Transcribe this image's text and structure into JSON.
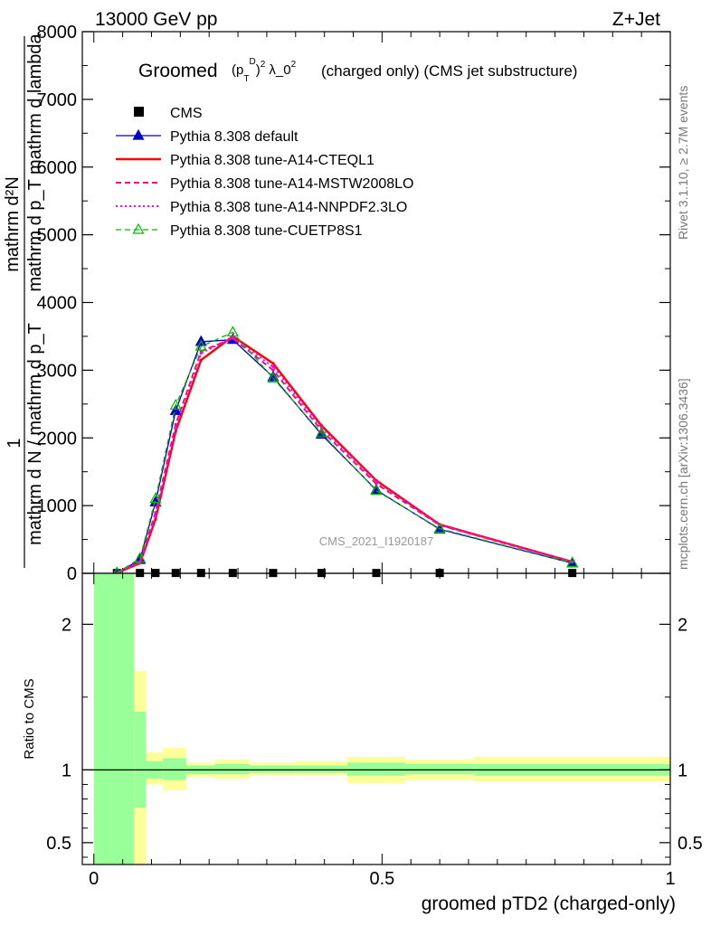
{
  "header": {
    "left": "13000 GeV pp",
    "right": "Z+Jet"
  },
  "plot_title": {
    "prefix": "Groomed",
    "math_text": "(p_T^D)^2 λ_0^2",
    "suffix": "(charged only) (CMS jet substructure)"
  },
  "side_labels": {
    "rivet": "Rivet 3.1.10, ≥ 2.7M events",
    "mcplots": "mcplots.cern.ch [arXiv:1306.3436]"
  },
  "watermark": "CMS_2021_I1920187",
  "colors": {
    "data": "#000000",
    "default": "#0000cc",
    "cteql1": "#ff0000",
    "mstw": "#ee1177",
    "nnpdf": "#ff00ff",
    "cuetp": "#00bb00",
    "band_inner": "#99ff99",
    "band_outer": "#ffff99"
  },
  "chart_data": [
    {
      "type": "line",
      "panel": "main",
      "ylabel": "1 / mathrm d N / mathrm d p_T mathrm d^2 N / mathrm d p_T mathrm d lambda",
      "ylim": [
        0,
        8000
      ],
      "xlim": [
        -0.02,
        1.0
      ],
      "yticks": [
        0,
        1000,
        2000,
        3000,
        4000,
        5000,
        6000,
        7000,
        8000
      ],
      "legend_position": "top-left",
      "series": [
        {
          "name": "CMS",
          "key": "data",
          "style": "square",
          "x": [
            0.04,
            0.08,
            0.107,
            0.142,
            0.186,
            0.241,
            0.311,
            0.395,
            0.49,
            0.6,
            0.83
          ],
          "y": [
            5,
            5,
            5,
            5,
            5,
            5,
            5,
            5,
            5,
            5,
            5
          ]
        },
        {
          "name": "Pythia 8.308 default",
          "key": "default",
          "style": "solid-triangle",
          "x": [
            0.04,
            0.08,
            0.107,
            0.142,
            0.186,
            0.241,
            0.311,
            0.395,
            0.49,
            0.6,
            0.83
          ],
          "y": [
            5,
            200,
            1050,
            2400,
            3420,
            3450,
            2900,
            2050,
            1230,
            650,
            150
          ]
        },
        {
          "name": "Pythia 8.308 tune-A14-CTEQL1",
          "key": "cteql1",
          "style": "solid",
          "x": [
            0.04,
            0.08,
            0.107,
            0.142,
            0.186,
            0.241,
            0.311,
            0.395,
            0.49,
            0.6,
            0.83
          ],
          "y": [
            5,
            150,
            800,
            2100,
            3150,
            3500,
            3100,
            2180,
            1370,
            720,
            170
          ]
        },
        {
          "name": "Pythia 8.308 tune-A14-MSTW2008LO",
          "key": "mstw",
          "style": "dashed",
          "x": [
            0.04,
            0.08,
            0.107,
            0.142,
            0.186,
            0.241,
            0.311,
            0.395,
            0.49,
            0.6,
            0.83
          ],
          "y": [
            5,
            170,
            900,
            2200,
            3280,
            3470,
            3000,
            2110,
            1320,
            710,
            165
          ]
        },
        {
          "name": "Pythia 8.308 tune-A14-NNPDF2.3LO",
          "key": "nnpdf",
          "style": "dotted",
          "x": [
            0.04,
            0.08,
            0.107,
            0.142,
            0.186,
            0.241,
            0.311,
            0.395,
            0.49,
            0.6,
            0.83
          ],
          "y": [
            5,
            160,
            850,
            2150,
            3250,
            3480,
            3050,
            2150,
            1350,
            715,
            168
          ]
        },
        {
          "name": "Pythia 8.308 tune-CUETP8S1",
          "key": "cuetp",
          "style": "dashed-open-triangle",
          "x": [
            0.04,
            0.08,
            0.107,
            0.142,
            0.186,
            0.241,
            0.311,
            0.395,
            0.49,
            0.6,
            0.83
          ],
          "y": [
            5,
            220,
            1100,
            2480,
            3350,
            3560,
            2880,
            2070,
            1220,
            660,
            155
          ]
        }
      ]
    },
    {
      "type": "area",
      "panel": "ratio",
      "xlabel": "groomed pTD2 (charged-only)",
      "ylabel": "Ratio to CMS",
      "ylim": [
        0.35,
        2.35
      ],
      "xlim": [
        -0.02,
        1.0
      ],
      "yticks": [
        0.5,
        1,
        2
      ],
      "xticks": [
        0,
        0.5,
        1
      ],
      "bins": [
        {
          "x_low": 0.0,
          "x_high": 0.07,
          "inner": [
            0.0,
            3.0
          ],
          "outer": [
            0.0,
            3.0
          ]
        },
        {
          "x_low": 0.07,
          "x_high": 0.09,
          "inner": [
            0.74,
            1.4
          ],
          "outer": [
            0.2,
            1.68
          ]
        },
        {
          "x_low": 0.09,
          "x_high": 0.12,
          "inner": [
            0.94,
            1.06
          ],
          "outer": [
            0.9,
            1.12
          ]
        },
        {
          "x_low": 0.12,
          "x_high": 0.16,
          "inner": [
            0.93,
            1.08
          ],
          "outer": [
            0.86,
            1.15
          ]
        },
        {
          "x_low": 0.16,
          "x_high": 0.21,
          "inner": [
            0.97,
            1.03
          ],
          "outer": [
            0.95,
            1.05
          ]
        },
        {
          "x_low": 0.21,
          "x_high": 0.27,
          "inner": [
            0.97,
            1.04
          ],
          "outer": [
            0.94,
            1.07
          ]
        },
        {
          "x_low": 0.27,
          "x_high": 0.35,
          "inner": [
            0.98,
            1.03
          ],
          "outer": [
            0.96,
            1.05
          ]
        },
        {
          "x_low": 0.35,
          "x_high": 0.44,
          "inner": [
            0.98,
            1.03
          ],
          "outer": [
            0.96,
            1.06
          ]
        },
        {
          "x_low": 0.44,
          "x_high": 0.54,
          "inner": [
            0.96,
            1.05
          ],
          "outer": [
            0.91,
            1.09
          ]
        },
        {
          "x_low": 0.54,
          "x_high": 0.66,
          "inner": [
            0.97,
            1.04
          ],
          "outer": [
            0.93,
            1.07
          ]
        },
        {
          "x_low": 0.66,
          "x_high": 1.0,
          "inner": [
            0.96,
            1.04
          ],
          "outer": [
            0.92,
            1.09
          ]
        }
      ]
    }
  ],
  "ytick_labels_main": [
    "0",
    "1000",
    "2000",
    "3000",
    "4000",
    "5000",
    "6000",
    "7000",
    "8000"
  ],
  "ytick_labels_ratio": [
    "0.5",
    "1",
    "2"
  ],
  "xtick_labels": [
    "0",
    "0.5",
    "1"
  ]
}
